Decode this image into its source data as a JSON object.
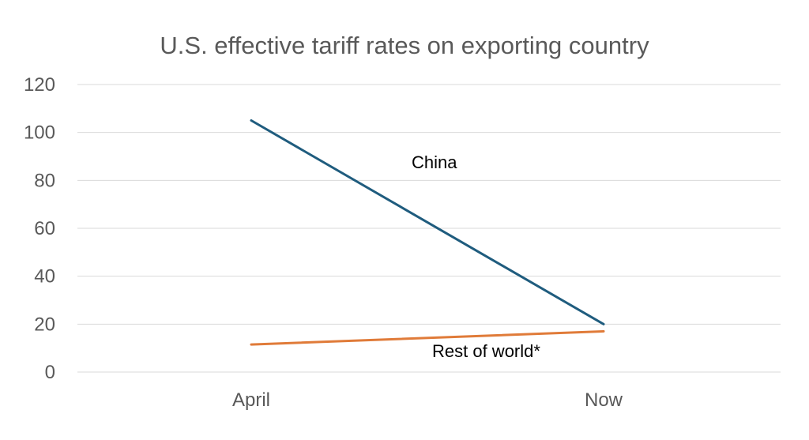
{
  "chart_data": {
    "type": "line",
    "title": "U.S. effective tariff rates on exporting country",
    "categories": [
      "April",
      "Now"
    ],
    "series": [
      {
        "name": "China",
        "values": [
          105,
          20
        ],
        "color": "#1F5C7E",
        "label": "China"
      },
      {
        "name": "Rest of world*",
        "values": [
          11.5,
          17
        ],
        "color": "#E07B39",
        "label": "Rest of world*"
      }
    ],
    "yticks": [
      0,
      20,
      40,
      60,
      80,
      100,
      120
    ],
    "ylim": [
      0,
      120
    ],
    "xlabel": "",
    "ylabel": "",
    "grid": true,
    "gridline_color": "#D9D9D9",
    "legend": "none"
  }
}
